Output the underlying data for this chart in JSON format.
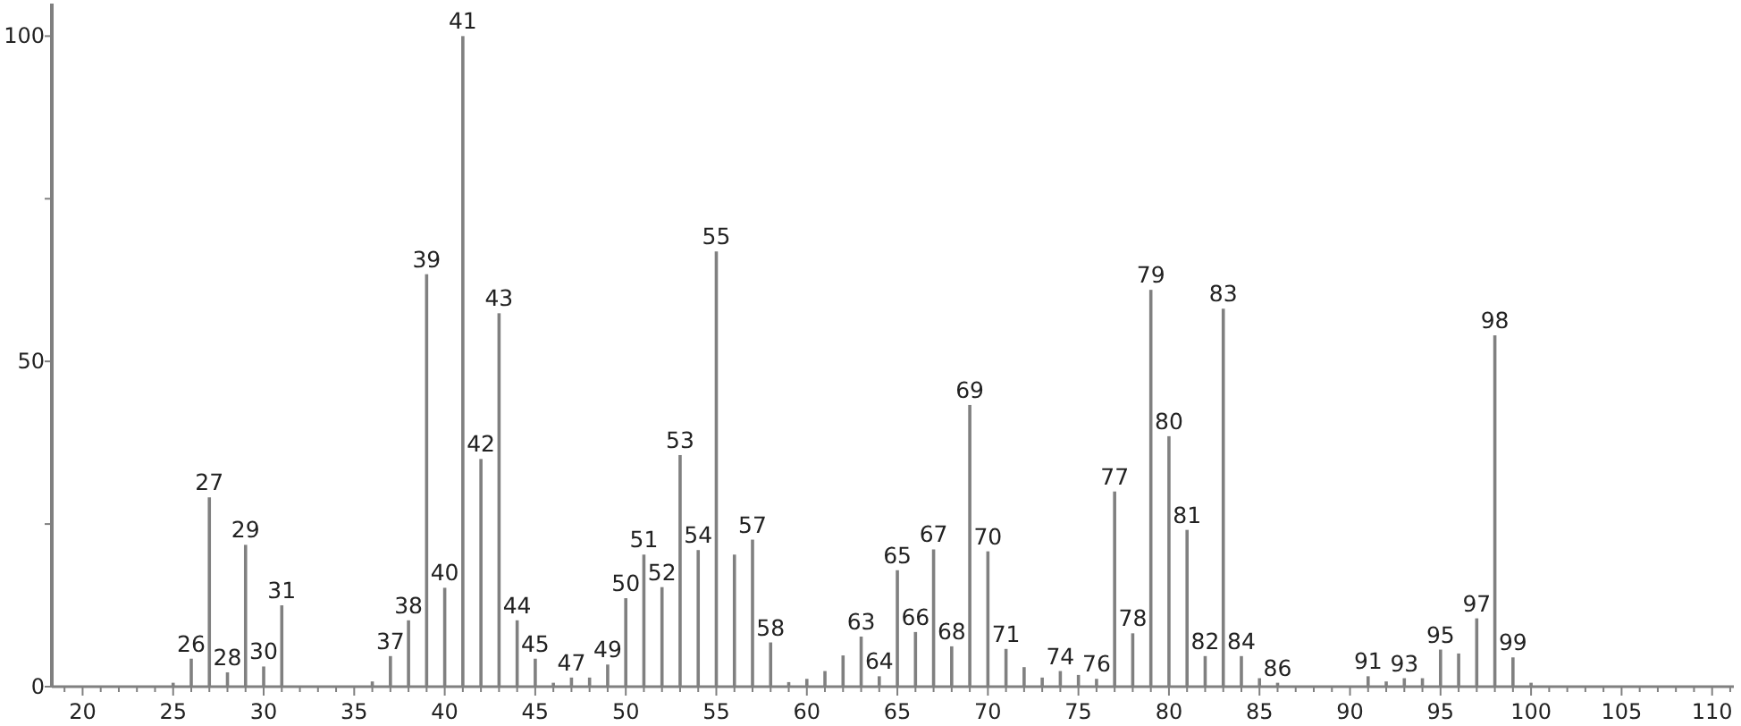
{
  "chart_data": {
    "type": "bar",
    "color": "#808080",
    "x": [
      25,
      26,
      27,
      28,
      29,
      30,
      31,
      36,
      37,
      38,
      39,
      40,
      41,
      42,
      43,
      44,
      45,
      46,
      47,
      48,
      49,
      50,
      51,
      52,
      53,
      54,
      55,
      56,
      57,
      58,
      59,
      60,
      61,
      62,
      63,
      64,
      65,
      66,
      67,
      68,
      69,
      70,
      71,
      72,
      73,
      74,
      75,
      76,
      77,
      78,
      79,
      80,
      81,
      82,
      83,
      84,
      85,
      86,
      91,
      92,
      93,
      94,
      95,
      96,
      97,
      98,
      99,
      100
    ],
    "values": [
      0.6,
      4.3,
      29.1,
      2.2,
      21.8,
      3.1,
      12.5,
      0.8,
      4.7,
      10.2,
      63.4,
      15.2,
      100,
      35,
      57.4,
      10.2,
      4.3,
      0.6,
      1.4,
      1.4,
      3.4,
      13.6,
      20.3,
      15.3,
      35.6,
      21,
      66.9,
      20.3,
      22.6,
      6.8,
      0.7,
      1.2,
      2.4,
      4.8,
      7.7,
      1.6,
      17.9,
      8.4,
      21.1,
      6.2,
      43.3,
      20.8,
      5.8,
      3,
      1.4,
      2.4,
      1.8,
      1.2,
      30,
      8.2,
      61,
      38.5,
      24.1,
      4.7,
      58.1,
      4.7,
      1.3,
      0.6,
      1.6,
      0.8,
      1.3,
      1.3,
      5.7,
      5.1,
      10.5,
      54,
      4.5,
      0.6
    ],
    "annotations": [
      {
        "text": "26",
        "x": 26,
        "y": 4.3
      },
      {
        "text": "27",
        "x": 27,
        "y": 29.1
      },
      {
        "text": "28",
        "x": 28,
        "y": 2.2
      },
      {
        "text": "29",
        "x": 29,
        "y": 21.8
      },
      {
        "text": "30",
        "x": 30,
        "y": 3.1
      },
      {
        "text": "31",
        "x": 31,
        "y": 12.5
      },
      {
        "text": "37",
        "x": 37,
        "y": 4.7
      },
      {
        "text": "38",
        "x": 38,
        "y": 10.2
      },
      {
        "text": "39",
        "x": 39,
        "y": 63.4
      },
      {
        "text": "40",
        "x": 40,
        "y": 15.2
      },
      {
        "text": "41",
        "x": 41,
        "y": 100
      },
      {
        "text": "42",
        "x": 42,
        "y": 35
      },
      {
        "text": "43",
        "x": 43,
        "y": 57.4
      },
      {
        "text": "44",
        "x": 44,
        "y": 10.2
      },
      {
        "text": "45",
        "x": 45,
        "y": 4.3
      },
      {
        "text": "47",
        "x": 47,
        "y": 1.4
      },
      {
        "text": "49",
        "x": 49,
        "y": 3.4
      },
      {
        "text": "50",
        "x": 50,
        "y": 13.6
      },
      {
        "text": "51",
        "x": 51,
        "y": 20.3
      },
      {
        "text": "52",
        "x": 52,
        "y": 15.3
      },
      {
        "text": "53",
        "x": 53,
        "y": 35.6
      },
      {
        "text": "54",
        "x": 54,
        "y": 21
      },
      {
        "text": "55",
        "x": 55,
        "y": 66.9
      },
      {
        "text": "57",
        "x": 57,
        "y": 22.6
      },
      {
        "text": "58",
        "x": 58,
        "y": 6.8
      },
      {
        "text": "63",
        "x": 63,
        "y": 7.7
      },
      {
        "text": "64",
        "x": 64,
        "y": 1.6
      },
      {
        "text": "65",
        "x": 65,
        "y": 17.9
      },
      {
        "text": "66",
        "x": 66,
        "y": 8.4
      },
      {
        "text": "67",
        "x": 67,
        "y": 21.1
      },
      {
        "text": "68",
        "x": 68,
        "y": 6.2
      },
      {
        "text": "69",
        "x": 69,
        "y": 43.3
      },
      {
        "text": "70",
        "x": 70,
        "y": 20.8
      },
      {
        "text": "71",
        "x": 71,
        "y": 5.8
      },
      {
        "text": "74",
        "x": 74,
        "y": 2.4
      },
      {
        "text": "76",
        "x": 76,
        "y": 1.2
      },
      {
        "text": "77",
        "x": 77,
        "y": 30
      },
      {
        "text": "78",
        "x": 78,
        "y": 8.2
      },
      {
        "text": "79",
        "x": 79,
        "y": 61
      },
      {
        "text": "80",
        "x": 80,
        "y": 38.5
      },
      {
        "text": "81",
        "x": 81,
        "y": 24.1
      },
      {
        "text": "82",
        "x": 82,
        "y": 4.7
      },
      {
        "text": "83",
        "x": 83,
        "y": 58.1
      },
      {
        "text": "84",
        "x": 84,
        "y": 4.7
      },
      {
        "text": "86",
        "x": 86,
        "y": 0.6
      },
      {
        "text": "91",
        "x": 91,
        "y": 1.6
      },
      {
        "text": "93",
        "x": 93,
        "y": 1.3
      },
      {
        "text": "95",
        "x": 95,
        "y": 5.7
      },
      {
        "text": "97",
        "x": 97,
        "y": 10.5
      },
      {
        "text": "98",
        "x": 98,
        "y": 54
      },
      {
        "text": "99",
        "x": 99,
        "y": 4.5
      }
    ],
    "xlim": [
      18.3,
      111.2
    ],
    "xticks": [
      {
        "value": 19,
        "label": null
      },
      20,
      {
        "value": 21,
        "label": null
      },
      {
        "value": 22,
        "label": null
      },
      {
        "value": 23,
        "label": null
      },
      {
        "value": 24,
        "label": null
      },
      25,
      {
        "value": 26,
        "label": null
      },
      {
        "value": 27,
        "label": null
      },
      {
        "value": 28,
        "label": null
      },
      {
        "value": 29,
        "label": null
      },
      30,
      {
        "value": 31,
        "label": null
      },
      {
        "value": 32,
        "label": null
      },
      {
        "value": 33,
        "label": null
      },
      {
        "value": 34,
        "label": null
      },
      35,
      {
        "value": 36,
        "label": null
      },
      {
        "value": 37,
        "label": null
      },
      {
        "value": 38,
        "label": null
      },
      {
        "value": 39,
        "label": null
      },
      40,
      {
        "value": 41,
        "label": null
      },
      {
        "value": 42,
        "label": null
      },
      {
        "value": 43,
        "label": null
      },
      {
        "value": 44,
        "label": null
      },
      45,
      {
        "value": 46,
        "label": null
      },
      {
        "value": 47,
        "label": null
      },
      {
        "value": 48,
        "label": null
      },
      {
        "value": 49,
        "label": null
      },
      50,
      {
        "value": 51,
        "label": null
      },
      {
        "value": 52,
        "label": null
      },
      {
        "value": 53,
        "label": null
      },
      {
        "value": 54,
        "label": null
      },
      55,
      {
        "value": 56,
        "label": null
      },
      {
        "value": 57,
        "label": null
      },
      {
        "value": 58,
        "label": null
      },
      {
        "value": 59,
        "label": null
      },
      60,
      {
        "value": 61,
        "label": null
      },
      {
        "value": 62,
        "label": null
      },
      {
        "value": 63,
        "label": null
      },
      {
        "value": 64,
        "label": null
      },
      65,
      {
        "value": 66,
        "label": null
      },
      {
        "value": 67,
        "label": null
      },
      {
        "value": 68,
        "label": null
      },
      {
        "value": 69,
        "label": null
      },
      70,
      {
        "value": 71,
        "label": null
      },
      {
        "value": 72,
        "label": null
      },
      {
        "value": 73,
        "label": null
      },
      {
        "value": 74,
        "label": null
      },
      75,
      {
        "value": 76,
        "label": null
      },
      {
        "value": 77,
        "label": null
      },
      {
        "value": 78,
        "label": null
      },
      {
        "value": 79,
        "label": null
      },
      80,
      {
        "value": 81,
        "label": null
      },
      {
        "value": 82,
        "label": null
      },
      {
        "value": 83,
        "label": null
      },
      {
        "value": 84,
        "label": null
      },
      85,
      {
        "value": 86,
        "label": null
      },
      {
        "value": 87,
        "label": null
      },
      {
        "value": 88,
        "label": null
      },
      {
        "value": 89,
        "label": null
      },
      90,
      {
        "value": 91,
        "label": null
      },
      {
        "value": 92,
        "label": null
      },
      {
        "value": 93,
        "label": null
      },
      {
        "value": 94,
        "label": null
      },
      95,
      {
        "value": 96,
        "label": null
      },
      {
        "value": 97,
        "label": null
      },
      {
        "value": 98,
        "label": null
      },
      {
        "value": 99,
        "label": null
      },
      100,
      {
        "value": 101,
        "label": null
      },
      {
        "value": 102,
        "label": null
      },
      {
        "value": 103,
        "label": null
      },
      {
        "value": 104,
        "label": null
      },
      105,
      {
        "value": 106,
        "label": null
      },
      {
        "value": 107,
        "label": null
      },
      {
        "value": 108,
        "label": null
      },
      {
        "value": 109,
        "label": null
      },
      110,
      {
        "value": 111,
        "label": null
      }
    ],
    "ylim": [
      0,
      105
    ],
    "yticks": [
      0,
      {
        "value": 25,
        "label": null
      },
      50,
      {
        "value": 75,
        "label": null
      },
      100
    ],
    "grid": false
  }
}
